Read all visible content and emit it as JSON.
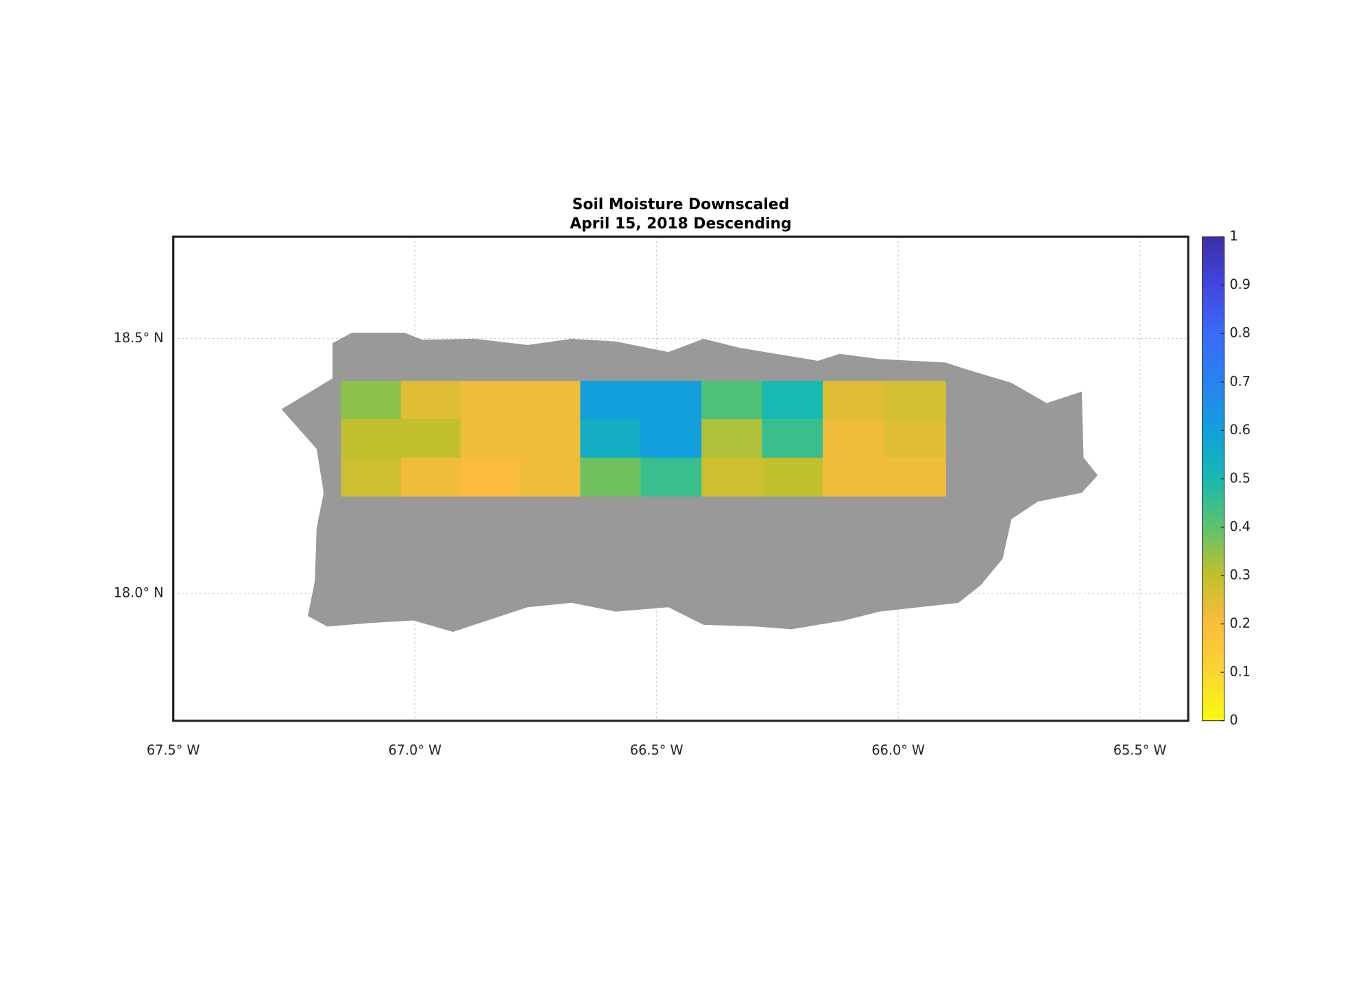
{
  "chart_data": {
    "type": "map-grid",
    "title": "Soil Moisture Downscaled",
    "subtitle": "April 15, 2018 Descending",
    "xlim": [
      -67.5,
      -65.4
    ],
    "ylim": [
      17.75,
      18.7
    ],
    "xticks": [
      {
        "value": -67.5,
        "label": "67.5° W"
      },
      {
        "value": -67.0,
        "label": "67.0° W"
      },
      {
        "value": -66.5,
        "label": "66.5° W"
      },
      {
        "value": -66.0,
        "label": "66.0° W"
      },
      {
        "value": -65.5,
        "label": "65.5° W"
      }
    ],
    "yticks": [
      {
        "value": 18.0,
        "label": "18.0° N"
      },
      {
        "value": 18.5,
        "label": "18.5° N"
      }
    ],
    "grid": true,
    "land_color": "#999999",
    "lon_edges": [
      -67.153,
      -67.029,
      -66.905,
      -66.782,
      -66.658,
      -66.533,
      -66.407,
      -66.282,
      -66.156,
      -66.029,
      -65.902
    ],
    "lat_edges": [
      18.417,
      18.342,
      18.266,
      18.191
    ],
    "values": [
      [
        0.35,
        0.25,
        0.22,
        0.22,
        0.6,
        0.6,
        0.42,
        0.5,
        0.25,
        0.27
      ],
      [
        0.3,
        0.3,
        0.22,
        0.22,
        0.55,
        0.6,
        0.32,
        0.45,
        0.22,
        0.25
      ],
      [
        0.28,
        0.22,
        0.2,
        0.22,
        0.38,
        0.45,
        0.28,
        0.3,
        0.22,
        0.22
      ]
    ],
    "clim": [
      0,
      1
    ],
    "cticks": [
      0,
      0.1,
      0.2,
      0.3,
      0.4,
      0.5,
      0.6,
      0.7,
      0.8,
      0.9,
      1
    ],
    "colormap": [
      "#f9fb0e",
      "#fbd632",
      "#fbbc3d",
      "#c2c02c",
      "#5cc36c",
      "#17b9b0",
      "#129fdc",
      "#2a82f0",
      "#3a6af8",
      "#4246e0",
      "#3a2fa6"
    ]
  }
}
